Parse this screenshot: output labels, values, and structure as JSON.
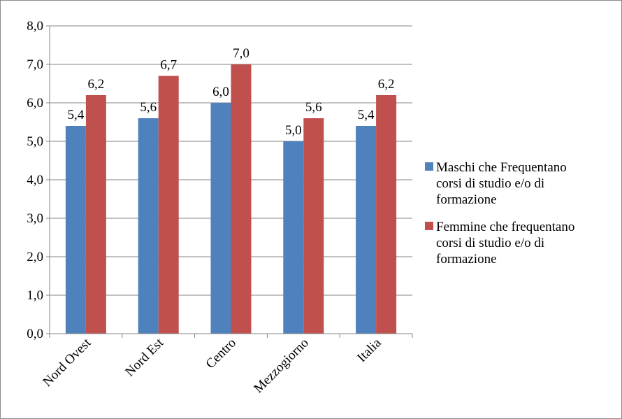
{
  "chart_data": {
    "type": "bar",
    "categories": [
      "Nord Ovest",
      "Nord Est",
      "Centro",
      "Mezzogiorno",
      "Italia"
    ],
    "series": [
      {
        "name": "Maschi che Frequentano corsi di studio e/o di formazione",
        "values": [
          5.4,
          5.6,
          6.0,
          5.0,
          5.4
        ],
        "labels": [
          "5,4",
          "5,6",
          "6,0",
          "5,0",
          "5,4"
        ],
        "color": "#4f81bd"
      },
      {
        "name": "Femmine che frequentano corsi di studio e/o di formazione",
        "values": [
          6.2,
          6.7,
          7.0,
          5.6,
          6.2
        ],
        "labels": [
          "6,2",
          "6,7",
          "7,0",
          "5,6",
          "6,2"
        ],
        "color": "#c0504d"
      }
    ],
    "ylim": [
      0,
      8
    ],
    "yticks": [
      "0,0",
      "1,0",
      "2,0",
      "3,0",
      "4,0",
      "5,0",
      "6,0",
      "7,0",
      "8,0"
    ],
    "grid": true,
    "legend_position": "right",
    "legend_lines": [
      [
        "Maschi che Frequentano",
        "corsi di studio e/o di",
        "formazione"
      ],
      [
        "Femmine che frequentano",
        "corsi di studio e/o di",
        "formazione"
      ]
    ]
  }
}
